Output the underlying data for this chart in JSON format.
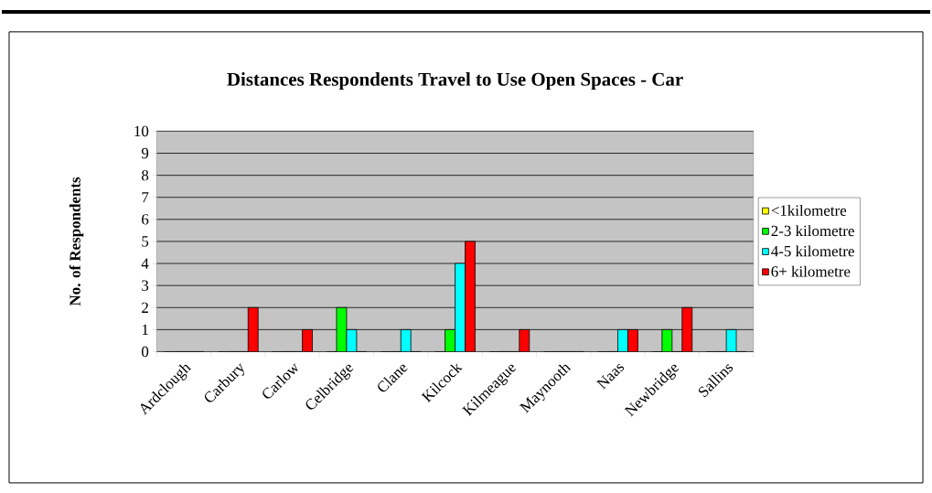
{
  "chart_data": {
    "type": "bar",
    "title": "Distances Respondents Travel to Use Open Spaces - Car",
    "ylabel": "No. of Respondents",
    "categories": [
      "Ardclough",
      "Carbury",
      "Carlow",
      "Celbridge",
      "Clane",
      "Kilcock",
      "Kilmeague",
      "Maynooth",
      "Naas",
      "Newbridge",
      "Sallins"
    ],
    "series": [
      {
        "name": "<1kilometre",
        "color": "#ffff00",
        "values": [
          0,
          0,
          0,
          0,
          0,
          0,
          0,
          0,
          0,
          0,
          0
        ]
      },
      {
        "name": "2-3 kilometre",
        "color": "#00ff00",
        "values": [
          0,
          0,
          0,
          2,
          0,
          1,
          0,
          0,
          0,
          1,
          0
        ]
      },
      {
        "name": "4-5 kilometre",
        "color": "#00ffff",
        "values": [
          0,
          0,
          0,
          1,
          1,
          4,
          0,
          0,
          1,
          0,
          1
        ]
      },
      {
        "name": "6+ kilometre",
        "color": "#ff0000",
        "values": [
          0,
          2,
          1,
          0,
          0,
          5,
          1,
          0,
          1,
          2,
          0
        ]
      }
    ],
    "ylim": [
      0,
      10
    ],
    "yticks": [
      0,
      1,
      2,
      3,
      4,
      5,
      6,
      7,
      8,
      9,
      10
    ],
    "grid": "y",
    "legend": "right"
  }
}
